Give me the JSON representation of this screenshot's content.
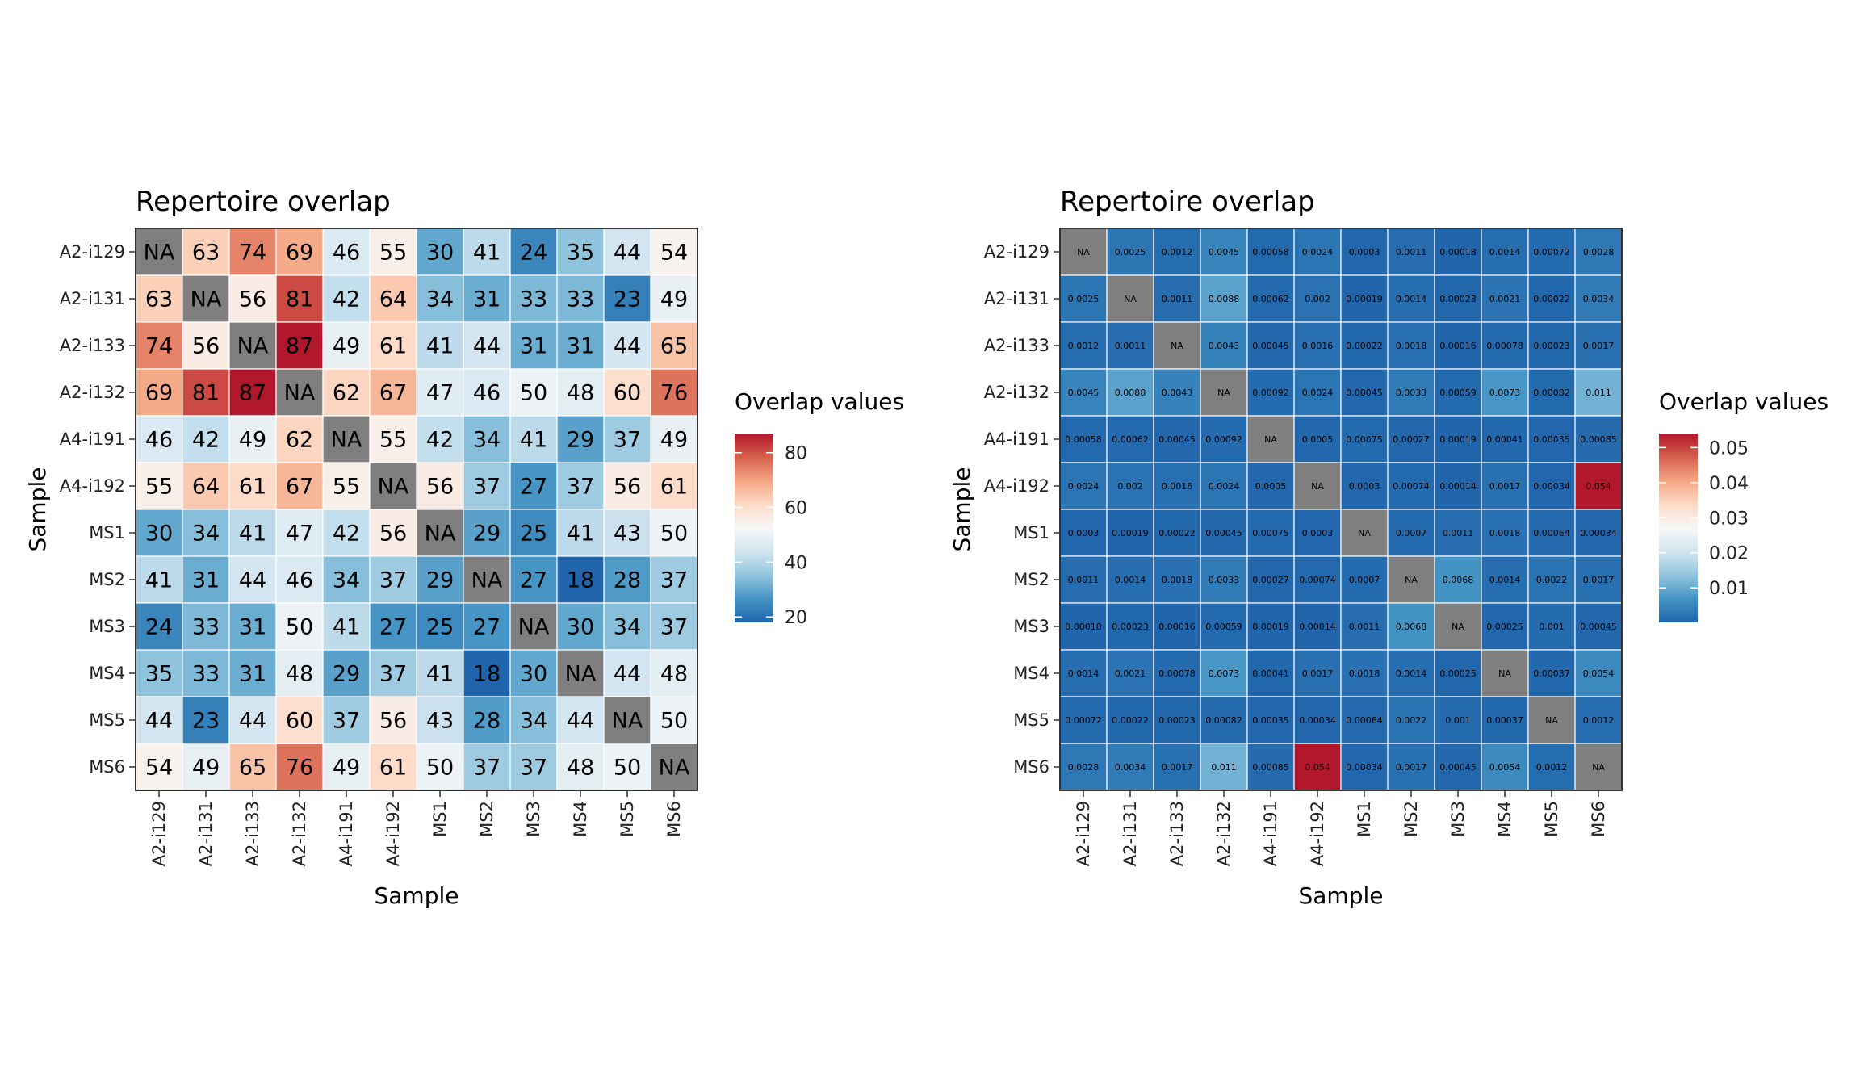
{
  "chart_data": [
    {
      "type": "heatmap",
      "title": "Repertoire overlap",
      "xlabel": "Sample",
      "ylabel": "Sample",
      "samples": [
        "A2-i129",
        "A2-i131",
        "A2-i133",
        "A2-i132",
        "A4-i191",
        "A4-i192",
        "MS1",
        "MS2",
        "MS3",
        "MS4",
        "MS5",
        "MS6"
      ],
      "matrix": [
        [
          null,
          63,
          74,
          69,
          46,
          55,
          30,
          41,
          24,
          35,
          44,
          54
        ],
        [
          63,
          null,
          56,
          81,
          42,
          64,
          34,
          31,
          33,
          33,
          23,
          49
        ],
        [
          74,
          56,
          null,
          87,
          49,
          61,
          41,
          44,
          31,
          31,
          44,
          65
        ],
        [
          69,
          81,
          87,
          null,
          62,
          67,
          47,
          46,
          50,
          48,
          60,
          76
        ],
        [
          46,
          42,
          49,
          62,
          null,
          55,
          42,
          34,
          41,
          29,
          37,
          49
        ],
        [
          55,
          64,
          61,
          67,
          55,
          null,
          56,
          37,
          27,
          37,
          56,
          61
        ],
        [
          30,
          34,
          41,
          47,
          42,
          56,
          null,
          29,
          25,
          41,
          43,
          50
        ],
        [
          41,
          31,
          44,
          46,
          34,
          37,
          29,
          null,
          27,
          18,
          28,
          37
        ],
        [
          24,
          33,
          31,
          50,
          41,
          27,
          25,
          27,
          null,
          30,
          34,
          37
        ],
        [
          35,
          33,
          31,
          48,
          29,
          37,
          41,
          18,
          30,
          null,
          44,
          48
        ],
        [
          44,
          23,
          44,
          60,
          37,
          56,
          43,
          28,
          34,
          44,
          null,
          50
        ],
        [
          54,
          49,
          65,
          76,
          49,
          61,
          50,
          37,
          37,
          48,
          50,
          null
        ]
      ],
      "na_label": "NA",
      "legend_title": "Overlap values",
      "legend_ticks": [
        "20",
        "40",
        "60",
        "80"
      ],
      "legend_tick_values": [
        20,
        40,
        60,
        80
      ],
      "value_range": [
        18,
        87
      ]
    },
    {
      "type": "heatmap",
      "title": "Repertoire overlap",
      "xlabel": "Sample",
      "ylabel": "Sample",
      "samples": [
        "A2-i129",
        "A2-i131",
        "A2-i133",
        "A2-i132",
        "A4-i191",
        "A4-i192",
        "MS1",
        "MS2",
        "MS3",
        "MS4",
        "MS5",
        "MS6"
      ],
      "matrix": [
        [
          null,
          "0.0025",
          "0.0012",
          "0.0045",
          "0.00058",
          "0.0024",
          "0.0003",
          "0.0011",
          "0.00018",
          "0.0014",
          "0.00072",
          "0.0028"
        ],
        [
          "0.0025",
          null,
          "0.0011",
          "0.0088",
          "0.00062",
          "0.002",
          "0.00019",
          "0.0014",
          "0.00023",
          "0.0021",
          "0.00022",
          "0.0034"
        ],
        [
          "0.0012",
          "0.0011",
          null,
          "0.0043",
          "0.00045",
          "0.0016",
          "0.00022",
          "0.0018",
          "0.00016",
          "0.00078",
          "0.00023",
          "0.0017"
        ],
        [
          "0.0045",
          "0.0088",
          "0.0043",
          null,
          "0.00092",
          "0.0024",
          "0.00045",
          "0.0033",
          "0.00059",
          "0.0073",
          "0.00082",
          "0.011"
        ],
        [
          "0.00058",
          "0.00062",
          "0.00045",
          "0.00092",
          null,
          "0.0005",
          "0.00075",
          "0.00027",
          "0.00019",
          "0.00041",
          "0.00035",
          "0.00085"
        ],
        [
          "0.0024",
          "0.002",
          "0.0016",
          "0.0024",
          "0.0005",
          null,
          "0.0003",
          "0.00074",
          "0.00014",
          "0.0017",
          "0.00034",
          "0.054"
        ],
        [
          "0.0003",
          "0.00019",
          "0.00022",
          "0.00045",
          "0.00075",
          "0.0003",
          null,
          "0.0007",
          "0.0011",
          "0.0018",
          "0.00064",
          "0.00034"
        ],
        [
          "0.0011",
          "0.0014",
          "0.0018",
          "0.0033",
          "0.00027",
          "0.00074",
          "0.0007",
          null,
          "0.0068",
          "0.0014",
          "0.0022",
          "0.0017"
        ],
        [
          "0.00018",
          "0.00023",
          "0.00016",
          "0.00059",
          "0.00019",
          "0.00014",
          "0.0011",
          "0.0068",
          null,
          "0.00025",
          "0.001",
          "0.00045"
        ],
        [
          "0.0014",
          "0.0021",
          "0.00078",
          "0.0073",
          "0.00041",
          "0.0017",
          "0.0018",
          "0.0014",
          "0.00025",
          null,
          "0.00037",
          "0.0054"
        ],
        [
          "0.00072",
          "0.00022",
          "0.00023",
          "0.00082",
          "0.00035",
          "0.00034",
          "0.00064",
          "0.0022",
          "0.001",
          "0.00037",
          null,
          "0.0012"
        ],
        [
          "0.0028",
          "0.0034",
          "0.0017",
          "0.011",
          "0.00085",
          "0.054",
          "0.00034",
          "0.0017",
          "0.00045",
          "0.0054",
          "0.0012",
          null
        ]
      ],
      "na_label": "NA",
      "legend_title": "Overlap values",
      "legend_ticks": [
        "0.01",
        "0.02",
        "0.03",
        "0.04",
        "0.05"
      ],
      "legend_tick_values": [
        0.01,
        0.02,
        0.03,
        0.04,
        0.05
      ],
      "value_range": [
        0.00014,
        0.054
      ]
    }
  ],
  "colors": {
    "palette": [
      "#2166ac",
      "#4393c3",
      "#92c5de",
      "#d1e5f0",
      "#f7f7f7",
      "#fddbc7",
      "#f4a582",
      "#d6604d",
      "#b2182b"
    ],
    "na_color": "#7f7f7f",
    "grid_line": "#ffffff",
    "text": "#000000"
  }
}
